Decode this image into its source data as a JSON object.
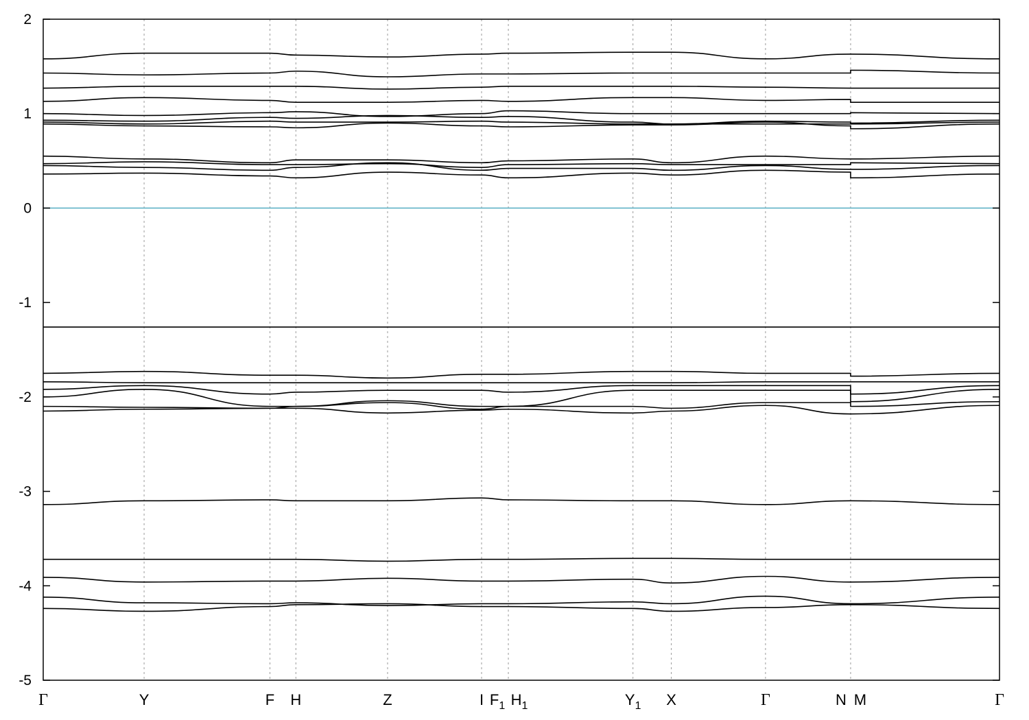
{
  "chart_data": {
    "type": "line",
    "title": "",
    "xlabel": "",
    "ylabel": "",
    "xlim": [
      0,
      1
    ],
    "ylim": [
      -5,
      2
    ],
    "yticks": [
      2,
      1,
      0,
      -1,
      -2,
      -3,
      -4,
      -5
    ],
    "ytick_labels": [
      "2",
      "1",
      "0",
      "-1",
      "-2",
      "-3",
      "-4",
      "-5"
    ],
    "fermi_level": 0,
    "fermi_color": "#5fb3c6",
    "grid": "vertical dotted lines at high-symmetry points",
    "kpoints": [
      {
        "label": "Γ",
        "sub": "",
        "x": 0.0
      },
      {
        "label": "Y",
        "sub": "",
        "x": 0.1055
      },
      {
        "label": "F",
        "sub": "",
        "x": 0.2371
      },
      {
        "label": "H",
        "sub": "",
        "x": 0.2642
      },
      {
        "label": "Z",
        "sub": "",
        "x": 0.3601
      },
      {
        "label": "I",
        "sub": "",
        "x": 0.4584
      },
      {
        "label": "F",
        "sub": "1",
        "x": 0.4864
      },
      {
        "label": "H",
        "sub": "1",
        "x": 0.4864
      },
      {
        "label": "Y",
        "sub": "1",
        "x": 0.6167
      },
      {
        "label": "X",
        "sub": "",
        "x": 0.6568
      },
      {
        "label": "Γ",
        "sub": "",
        "x": 0.7553
      },
      {
        "label": "N",
        "sub": "",
        "x": 0.8443
      },
      {
        "label": "M",
        "sub": "",
        "x": 0.8443
      },
      {
        "label": "Γ",
        "sub": "",
        "x": 1.0
      }
    ],
    "band_x": [
      0,
      0.1055,
      0.2371,
      0.2642,
      0.3601,
      0.4584,
      0.4864,
      0.6167,
      0.6568,
      0.7553,
      0.8443,
      0.8443,
      1.0
    ],
    "series": [
      {
        "values": [
          1.58,
          1.64,
          1.64,
          1.62,
          1.6,
          1.63,
          1.64,
          1.65,
          1.65,
          1.58,
          1.63,
          1.63,
          1.58
        ]
      },
      {
        "values": [
          1.43,
          1.41,
          1.43,
          1.45,
          1.39,
          1.42,
          1.42,
          1.43,
          1.43,
          1.43,
          1.43,
          1.46,
          1.43
        ]
      },
      {
        "values": [
          1.27,
          1.29,
          1.29,
          1.29,
          1.26,
          1.28,
          1.29,
          1.29,
          1.29,
          1.28,
          1.27,
          1.27,
          1.27
        ]
      },
      {
        "values": [
          1.13,
          1.17,
          1.14,
          1.12,
          1.12,
          1.14,
          1.13,
          1.17,
          1.17,
          1.14,
          1.15,
          1.12,
          1.12
        ]
      },
      {
        "values": [
          1.0,
          0.98,
          1.01,
          1.02,
          0.97,
          1.0,
          1.03,
          1.0,
          1.0,
          1.0,
          1.0,
          1.01,
          1.0
        ]
      },
      {
        "values": [
          0.93,
          0.92,
          0.96,
          0.95,
          0.98,
          0.96,
          0.97,
          0.91,
          0.89,
          0.92,
          0.91,
          0.9,
          0.93
        ]
      },
      {
        "values": [
          0.91,
          0.89,
          0.92,
          0.91,
          0.91,
          0.92,
          0.91,
          0.89,
          0.89,
          0.89,
          0.89,
          0.89,
          0.91
        ]
      },
      {
        "values": [
          0.89,
          0.87,
          0.86,
          0.85,
          0.9,
          0.87,
          0.86,
          0.88,
          0.88,
          0.91,
          0.87,
          0.84,
          0.89
        ]
      },
      {
        "values": [
          0.55,
          0.52,
          0.48,
          0.51,
          0.51,
          0.48,
          0.5,
          0.52,
          0.48,
          0.55,
          0.52,
          0.52,
          0.55
        ]
      },
      {
        "values": [
          0.47,
          0.49,
          0.46,
          0.46,
          0.47,
          0.43,
          0.46,
          0.47,
          0.46,
          0.46,
          0.46,
          0.48,
          0.47
        ]
      },
      {
        "values": [
          0.45,
          0.43,
          0.4,
          0.43,
          0.48,
          0.4,
          0.42,
          0.42,
          0.4,
          0.45,
          0.41,
          0.41,
          0.45
        ]
      },
      {
        "values": [
          0.36,
          0.37,
          0.34,
          0.32,
          0.38,
          0.35,
          0.32,
          0.37,
          0.35,
          0.4,
          0.38,
          0.32,
          0.36
        ]
      },
      {
        "values": [
          -1.26,
          -1.26,
          -1.26,
          -1.26,
          -1.26,
          -1.26,
          -1.26,
          -1.26,
          -1.26,
          -1.26,
          -1.26,
          -1.26,
          -1.26
        ]
      },
      {
        "values": [
          -1.75,
          -1.73,
          -1.77,
          -1.77,
          -1.8,
          -1.76,
          -1.76,
          -1.73,
          -1.73,
          -1.75,
          -1.75,
          -1.78,
          -1.75
        ]
      },
      {
        "values": [
          -1.84,
          -1.85,
          -1.85,
          -1.85,
          -1.85,
          -1.85,
          -1.85,
          -1.85,
          -1.85,
          -1.84,
          -1.84,
          -1.84,
          -1.84
        ]
      },
      {
        "values": [
          -1.92,
          -1.88,
          -1.97,
          -1.95,
          -1.93,
          -1.93,
          -1.95,
          -1.88,
          -1.88,
          -1.88,
          -1.88,
          -1.97,
          -1.88
        ]
      },
      {
        "values": [
          -2.0,
          -1.92,
          -2.1,
          -2.1,
          -2.04,
          -2.1,
          -2.1,
          -1.93,
          -1.93,
          -1.93,
          -1.93,
          -2.05,
          -1.92
        ]
      },
      {
        "values": [
          -2.1,
          -2.11,
          -2.12,
          -2.1,
          -2.06,
          -2.13,
          -2.1,
          -2.1,
          -2.12,
          -2.06,
          -2.06,
          -2.1,
          -2.05
        ]
      },
      {
        "values": [
          -2.15,
          -2.13,
          -2.12,
          -2.12,
          -2.17,
          -2.14,
          -2.13,
          -2.17,
          -2.15,
          -2.09,
          -2.18,
          -2.18,
          -2.09
        ]
      },
      {
        "values": [
          -3.14,
          -3.1,
          -3.09,
          -3.1,
          -3.1,
          -3.07,
          -3.09,
          -3.1,
          -3.1,
          -3.14,
          -3.1,
          -3.1,
          -3.14
        ]
      },
      {
        "values": [
          -3.72,
          -3.72,
          -3.72,
          -3.72,
          -3.74,
          -3.72,
          -3.72,
          -3.71,
          -3.71,
          -3.72,
          -3.72,
          -3.72,
          -3.72
        ]
      },
      {
        "values": [
          -3.91,
          -3.96,
          -3.95,
          -3.95,
          -3.92,
          -3.95,
          -3.95,
          -3.93,
          -3.97,
          -3.9,
          -3.96,
          -3.96,
          -3.91
        ]
      },
      {
        "values": [
          -4.12,
          -4.18,
          -4.19,
          -4.18,
          -4.21,
          -4.19,
          -4.19,
          -4.17,
          -4.19,
          -4.11,
          -4.19,
          -4.19,
          -4.12
        ]
      },
      {
        "values": [
          -4.24,
          -4.27,
          -4.22,
          -4.2,
          -4.19,
          -4.22,
          -4.22,
          -4.24,
          -4.27,
          -4.23,
          -4.2,
          -4.2,
          -4.24
        ]
      }
    ]
  }
}
